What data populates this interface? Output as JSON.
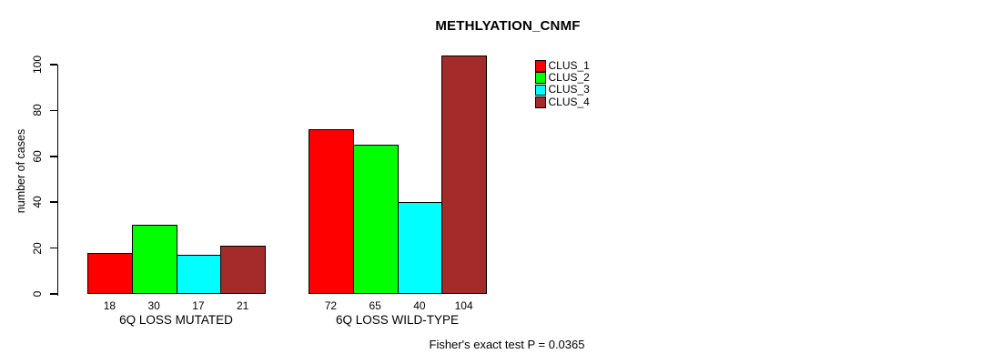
{
  "title": "METHLYATION_CNMF",
  "footer": "Fisher's exact test P = 0.0365",
  "chart_data": {
    "type": "bar",
    "title": "METHLYATION_CNMF",
    "categories": [
      "6Q LOSS MUTATED",
      "6Q LOSS WILD-TYPE"
    ],
    "series": [
      {
        "name": "CLUS_1",
        "color": "#FF0000",
        "values": [
          18,
          72
        ]
      },
      {
        "name": "CLUS_2",
        "color": "#00FF00",
        "values": [
          30,
          65
        ]
      },
      {
        "name": "CLUS_3",
        "color": "#00FFFF",
        "values": [
          17,
          40
        ]
      },
      {
        "name": "CLUS_4",
        "color": "#A52A2A",
        "values": [
          21,
          104
        ]
      }
    ],
    "bar_value_labels": [
      [
        18,
        30,
        17,
        21
      ],
      [
        72,
        65,
        40,
        104
      ]
    ],
    "xlabel": "",
    "ylabel": "number of cases",
    "yticks": [
      0,
      20,
      40,
      60,
      80,
      100
    ],
    "ylim": [
      0,
      100
    ],
    "grid": false,
    "legend_position": "top-right",
    "annotation": "Fisher's exact test P = 0.0365"
  },
  "legend": {
    "items": [
      {
        "label": "CLUS_1",
        "color": "#FF0000"
      },
      {
        "label": "CLUS_2",
        "color": "#00FF00"
      },
      {
        "label": "CLUS_3",
        "color": "#00FFFF"
      },
      {
        "label": "CLUS_4",
        "color": "#A52A2A"
      }
    ]
  }
}
